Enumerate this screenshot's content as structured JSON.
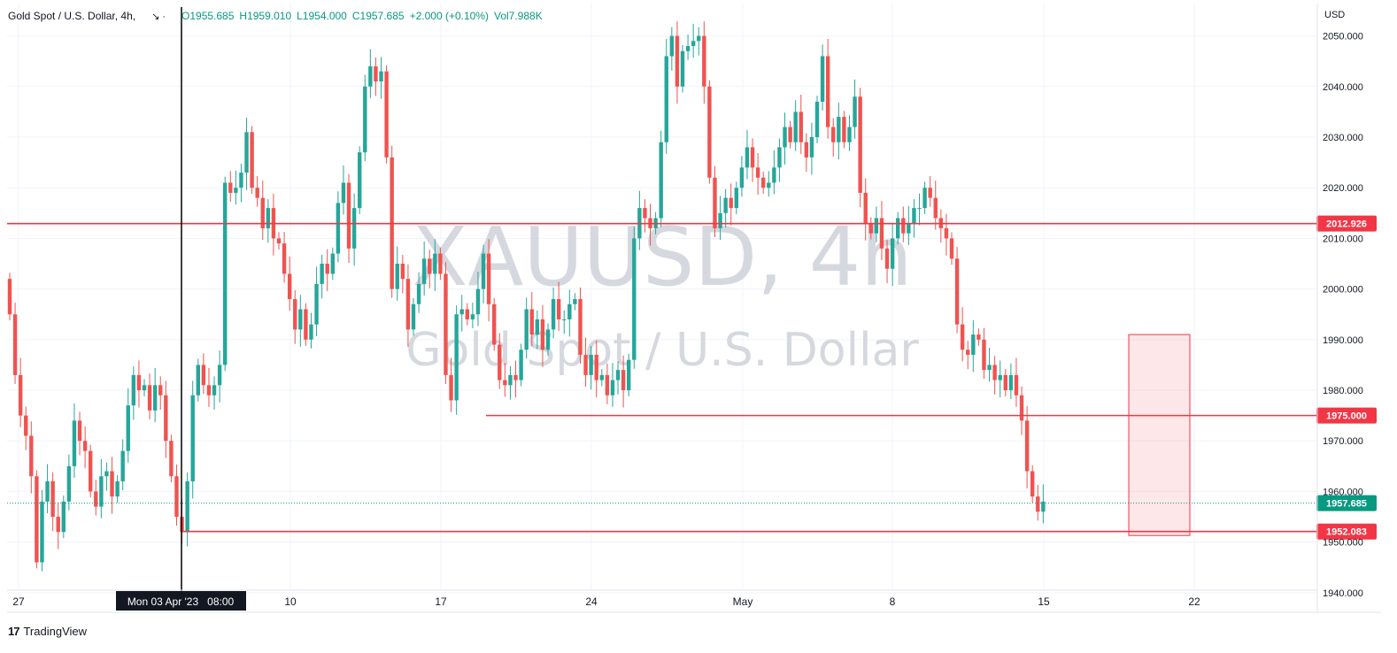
{
  "header": {
    "symbol": "Gold Spot / U.S. Dollar, 4h,",
    "open": "O1955.685",
    "high": "H1959.010",
    "low": "L1954.000",
    "close": "C1957.685",
    "change": "+2.000 (+0.10%)",
    "volume": "Vol7.988K"
  },
  "currency": "USD",
  "watermark": {
    "line1": "XAUUSD, 4h",
    "line2": "Gold Spot / U.S. Dollar"
  },
  "crosshair_label": "Mon 03 Apr '23   08:00",
  "footer": {
    "brand": "TradingView"
  },
  "colors": {
    "up": "#26a69a",
    "down": "#ef5350",
    "line": "#f23645",
    "accent": "#089981"
  },
  "chart_data": {
    "type": "candlestick",
    "y_axis": {
      "min": 1937,
      "max": 2055,
      "ticks": [
        1940,
        1950,
        1960,
        1970,
        1980,
        1990,
        2000,
        2010,
        2020,
        2030,
        2040,
        2050
      ],
      "tick_labels": [
        "1940.000",
        "1950.000",
        "1960.000",
        "1970.000",
        "1980.000",
        "1990.000",
        "2000.000",
        "2010.000",
        "2020.000",
        "2030.000",
        "2040.000",
        "2050.000"
      ]
    },
    "x_axis": {
      "labels": [
        "27",
        "10",
        "17",
        "24",
        "May",
        "8",
        "15",
        "22"
      ]
    },
    "horizontal_levels": [
      {
        "value": 2012.926,
        "label": "2012.926",
        "full_width": true
      },
      {
        "value": 1975.0,
        "label": "1975.000",
        "full_width": false
      },
      {
        "value": 1952.083,
        "label": "1952.083",
        "full_width": false
      }
    ],
    "last_price": {
      "value": 1957.685,
      "label": "1957.685"
    },
    "highlight_zone": {
      "top": 1991,
      "bottom": 1951.3
    },
    "closes": [
      1995,
      1983,
      1975,
      1971,
      1963,
      1946,
      1958,
      1962,
      1955,
      1952,
      1958,
      1965,
      1974,
      1970,
      1968,
      1960,
      1957,
      1963,
      1964,
      1959,
      1962,
      1968,
      1977,
      1983,
      1980,
      1981,
      1976,
      1981,
      1979,
      1970,
      1963,
      1955,
      1952,
      1962,
      1979,
      1985,
      1981,
      1979,
      1981,
      1985,
      2021,
      2019,
      2020,
      2023,
      2031,
      2020,
      2018,
      2012,
      2016,
      2010,
      2009,
      2003,
      1998,
      1992,
      1996,
      1990,
      1993,
      2001,
      2005,
      2003,
      2007,
      2017,
      2021,
      2008,
      2016,
      2027,
      2040,
      2044,
      2041,
      2043,
      2026,
      2000,
      2005,
      2002,
      1992,
      1997,
      2001,
      2006,
      2003,
      2007,
      2003,
      1983,
      1978,
      1995,
      1996,
      1994,
      1995,
      2000,
      2007,
      1997,
      1989,
      1982,
      1981,
      1983,
      1982,
      1988,
      1996,
      1991,
      1994,
      1988,
      1992,
      1998,
      1994,
      1994,
      1997,
      1998,
      1987,
      1983,
      1987,
      1982,
      1983,
      1979,
      1982,
      1984,
      1980,
      1986,
      2010,
      2016,
      2014,
      2012,
      2014,
      2029,
      2046,
      2050,
      2040,
      2047,
      2048,
      2049,
      2050,
      2040,
      2022,
      2012,
      2015,
      2018,
      2016,
      2020,
      2024,
      2028,
      2024,
      2022,
      2020,
      2021,
      2024,
      2028,
      2032,
      2029,
      2035,
      2029,
      2026,
      2030,
      2037,
      2046,
      2032,
      2029,
      2034,
      2029,
      2032,
      2038,
      2019,
      2013,
      2011,
      2014,
      2008,
      2004,
      2010,
      2014,
      2011,
      2013,
      2016,
      2016,
      2020,
      2018,
      2014,
      2012,
      2010,
      2006,
      1993,
      1988,
      1987,
      1991,
      1990,
      1984,
      1985,
      1982,
      1983,
      1980,
      1983,
      1979,
      1974,
      1964,
      1959,
      1956,
      1958
    ]
  }
}
